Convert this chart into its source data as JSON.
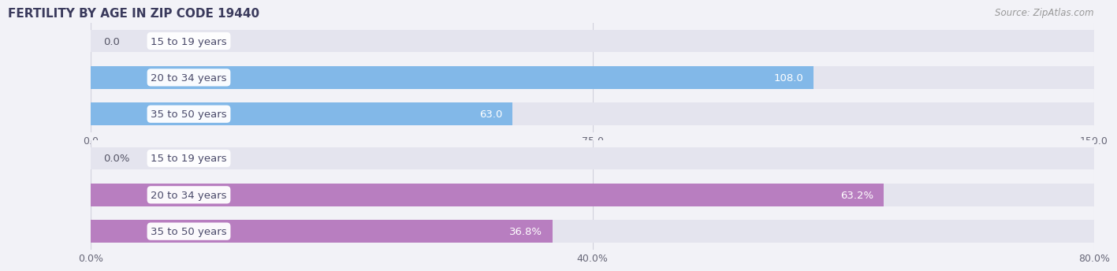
{
  "title": "FERTILITY BY AGE IN ZIP CODE 19440",
  "source_text": "Source: ZipAtlas.com",
  "top_chart": {
    "categories": [
      "15 to 19 years",
      "20 to 34 years",
      "35 to 50 years"
    ],
    "values": [
      0.0,
      108.0,
      63.0
    ],
    "xlim": [
      0,
      150
    ],
    "xticks": [
      0.0,
      75.0,
      150.0
    ],
    "xtick_labels": [
      "0.0",
      "75.0",
      "150.0"
    ],
    "bar_color": "#82B8E8",
    "bar_bg_color": "#E4E4EE",
    "label_color": "#4A4A6A"
  },
  "bottom_chart": {
    "categories": [
      "15 to 19 years",
      "20 to 34 years",
      "35 to 50 years"
    ],
    "values": [
      0.0,
      63.2,
      36.8
    ],
    "xlim": [
      0,
      80
    ],
    "xticks": [
      0.0,
      40.0,
      80.0
    ],
    "xtick_labels": [
      "0.0%",
      "40.0%",
      "80.0%"
    ],
    "bar_color": "#B87EC0",
    "bar_bg_color": "#E4E4EE",
    "label_color": "#4A4A6A",
    "value_suffix": "%"
  },
  "label_fontsize": 9.5,
  "tick_fontsize": 9,
  "title_fontsize": 11,
  "source_fontsize": 8.5,
  "bar_height": 0.62,
  "background_color": "#F2F2F7",
  "grid_color": "#D0D0DC"
}
